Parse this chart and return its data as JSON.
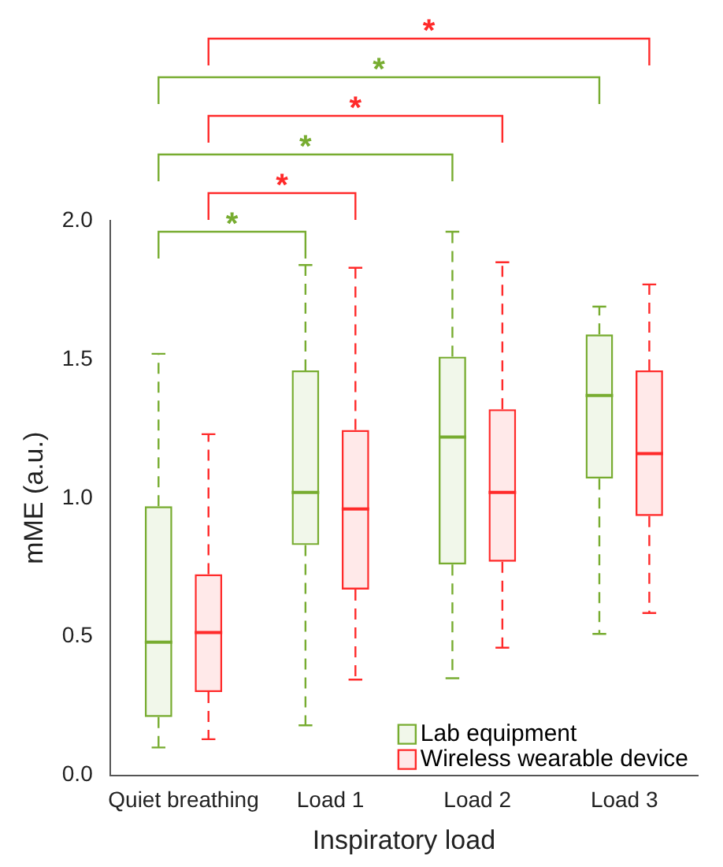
{
  "chart_data": {
    "type": "box",
    "xlabel": "Inspiratory load",
    "ylabel": "mME (a.u.)",
    "categories": [
      "Quiet breathing",
      "Load 1",
      "Load 2",
      "Load 3"
    ],
    "ylim": [
      0,
      2
    ],
    "yticks": [
      {
        "value": 0,
        "label": "0.0"
      },
      {
        "value": 0.5,
        "label": "0.5"
      },
      {
        "value": 1,
        "label": "1.0"
      },
      {
        "value": 1.5,
        "label": "1.5"
      },
      {
        "value": 2,
        "label": "2.0"
      }
    ],
    "grid": false,
    "legend": "bottom right",
    "series": [
      {
        "name": "Lab equipment",
        "color": "#77ac30",
        "boxes": [
          {
            "low": 0.1,
            "q1": 0.21,
            "median": 0.48,
            "q3": 0.97,
            "high": 1.52
          },
          {
            "low": 0.18,
            "q1": 0.83,
            "median": 1.02,
            "q3": 1.46,
            "high": 1.84
          },
          {
            "low": 0.35,
            "q1": 0.76,
            "median": 1.22,
            "q3": 1.51,
            "high": 1.96
          },
          {
            "low": 0.51,
            "q1": 1.07,
            "median": 1.37,
            "q3": 1.59,
            "high": 1.69
          }
        ]
      },
      {
        "name": "Wireless wearable device",
        "color": "#ff2a2a",
        "boxes": [
          {
            "low": 0.13,
            "q1": 0.3,
            "median": 0.515,
            "q3": 0.725,
            "high": 1.23
          },
          {
            "low": 0.345,
            "q1": 0.67,
            "median": 0.96,
            "q3": 1.245,
            "high": 1.83
          },
          {
            "low": 0.46,
            "q1": 0.77,
            "median": 1.02,
            "q3": 1.32,
            "high": 1.85
          },
          {
            "low": 0.585,
            "q1": 0.935,
            "median": 1.16,
            "q3": 1.46,
            "high": 1.77
          }
        ]
      }
    ],
    "annotations": [
      "*",
      "*",
      "*",
      "*",
      "*",
      "*"
    ]
  }
}
